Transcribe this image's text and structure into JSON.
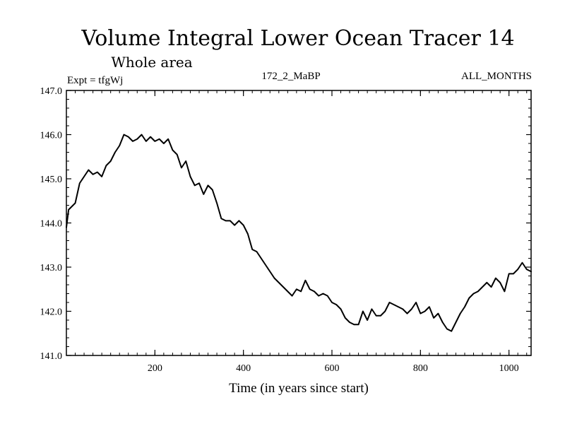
{
  "chart_data": {
    "type": "line",
    "title": "Volume Integral Lower Ocean Tracer 14",
    "subtitle": "Whole area",
    "info_left": "Expt = tfgWj",
    "info_center": "172_2_MaBP",
    "info_right": "ALL_MONTHS",
    "xlabel": "Time (in years since start)",
    "ylabel": "",
    "xlim": [
      0,
      1050
    ],
    "ylim": [
      141.0,
      147.0
    ],
    "x_ticks": [
      200,
      400,
      600,
      800,
      1000
    ],
    "x_tick_labels": [
      "200",
      "400",
      "600",
      "800",
      "1000"
    ],
    "y_ticks": [
      141.0,
      142.0,
      143.0,
      144.0,
      145.0,
      146.0,
      147.0
    ],
    "y_tick_labels": [
      "141.0",
      "142.0",
      "143.0",
      "144.0",
      "145.0",
      "146.0",
      "147.0"
    ],
    "series": [
      {
        "name": "Tracer 14",
        "color": "#000000",
        "x": [
          0,
          5,
          10,
          20,
          30,
          40,
          50,
          60,
          70,
          80,
          90,
          100,
          110,
          120,
          130,
          140,
          150,
          160,
          170,
          180,
          190,
          200,
          210,
          220,
          230,
          240,
          250,
          260,
          270,
          280,
          290,
          300,
          310,
          320,
          330,
          340,
          350,
          360,
          370,
          380,
          390,
          400,
          410,
          420,
          430,
          440,
          450,
          460,
          470,
          480,
          490,
          500,
          510,
          520,
          530,
          540,
          550,
          560,
          570,
          580,
          590,
          600,
          610,
          620,
          630,
          640,
          650,
          660,
          670,
          680,
          690,
          700,
          710,
          720,
          730,
          740,
          750,
          760,
          770,
          780,
          790,
          800,
          810,
          820,
          830,
          840,
          850,
          860,
          870,
          880,
          890,
          900,
          910,
          920,
          930,
          940,
          950,
          960,
          970,
          980,
          990,
          1000,
          1010,
          1020,
          1030,
          1040,
          1050
        ],
        "values": [
          143.9,
          144.3,
          144.35,
          144.45,
          144.9,
          145.05,
          145.2,
          145.1,
          145.15,
          145.05,
          145.3,
          145.4,
          145.6,
          145.75,
          146.0,
          145.95,
          145.85,
          145.9,
          146.0,
          145.85,
          145.95,
          145.85,
          145.9,
          145.8,
          145.9,
          145.65,
          145.55,
          145.25,
          145.4,
          145.05,
          144.85,
          144.9,
          144.65,
          144.85,
          144.75,
          144.45,
          144.1,
          144.05,
          144.05,
          143.95,
          144.05,
          143.95,
          143.75,
          143.4,
          143.35,
          143.2,
          143.05,
          142.9,
          142.75,
          142.65,
          142.55,
          142.45,
          142.35,
          142.5,
          142.45,
          142.7,
          142.5,
          142.45,
          142.35,
          142.4,
          142.35,
          142.2,
          142.15,
          142.05,
          141.85,
          141.75,
          141.7,
          141.7,
          142.0,
          141.8,
          142.05,
          141.9,
          141.9,
          142.0,
          142.2,
          142.15,
          142.1,
          142.05,
          141.95,
          142.05,
          142.2,
          141.95,
          142.0,
          142.1,
          141.85,
          141.95,
          141.75,
          141.6,
          141.55,
          141.75,
          141.95,
          142.1,
          142.3,
          142.4,
          142.45,
          142.55,
          142.65,
          142.55,
          142.75,
          142.65,
          142.45,
          142.85,
          142.85,
          142.95,
          143.1,
          142.95,
          142.9
        ]
      }
    ]
  }
}
